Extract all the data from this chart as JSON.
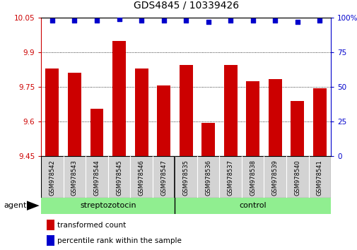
{
  "title": "GDS4845 / 10339426",
  "samples": [
    "GSM978542",
    "GSM978543",
    "GSM978544",
    "GSM978545",
    "GSM978546",
    "GSM978547",
    "GSM978535",
    "GSM978536",
    "GSM978537",
    "GSM978538",
    "GSM978539",
    "GSM978540",
    "GSM978541"
  ],
  "bar_values": [
    9.83,
    9.81,
    9.655,
    9.95,
    9.83,
    9.755,
    9.845,
    9.595,
    9.845,
    9.775,
    9.785,
    9.69,
    9.745
  ],
  "percentile_values": [
    98,
    98,
    98,
    99,
    98,
    98,
    98,
    97,
    98,
    98,
    98,
    97,
    98
  ],
  "bar_color": "#cc0000",
  "percentile_color": "#0000cc",
  "ylim_left": [
    9.45,
    10.05
  ],
  "yticks_left": [
    9.45,
    9.6,
    9.75,
    9.9,
    10.05
  ],
  "ytick_labels_left": [
    "9.45",
    "9.6",
    "9.75",
    "9.9",
    "10.05"
  ],
  "ylim_right": [
    0,
    100
  ],
  "yticks_right": [
    0,
    25,
    50,
    75,
    100
  ],
  "yticklabels_right": [
    "0",
    "25",
    "50",
    "75",
    "100%"
  ],
  "group1_label": "streptozotocin",
  "group1_count": 6,
  "group2_label": "control",
  "group2_count": 7,
  "group_color": "#90ee90",
  "agent_label": "agent",
  "legend_bar_label": "transformed count",
  "legend_pct_label": "percentile rank within the sample",
  "left_axis_color": "#cc0000",
  "right_axis_color": "#0000cc",
  "grid_linestyle": "dotted",
  "tick_label_bg": "#d3d3d3",
  "bar_width": 0.6,
  "title_fontsize": 10,
  "tick_fontsize": 7.5,
  "sample_fontsize": 6,
  "group_fontsize": 8,
  "legend_fontsize": 7.5,
  "agent_fontsize": 8
}
